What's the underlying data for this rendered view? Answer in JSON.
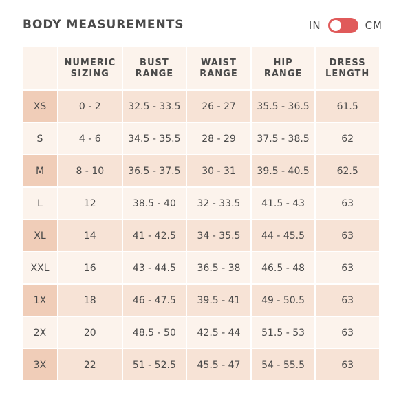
{
  "header": {
    "title": "BODY MEASUREMENTS",
    "unit_in": "IN",
    "unit_cm": "CM"
  },
  "table": {
    "columns": [
      "",
      "NUMERIC SIZING",
      "BUST RANGE",
      "WAIST RANGE",
      "HIP RANGE",
      "DRESS LENGTH"
    ],
    "rows": [
      [
        "XS",
        "0 - 2",
        "32.5 - 33.5",
        "26 - 27",
        "35.5 - 36.5",
        "61.5"
      ],
      [
        "S",
        "4 - 6",
        "34.5 - 35.5",
        "28 - 29",
        "37.5 - 38.5",
        "62"
      ],
      [
        "M",
        "8 - 10",
        "36.5 - 37.5",
        "30 - 31",
        "39.5 - 40.5",
        "62.5"
      ],
      [
        "L",
        "12",
        "38.5 - 40",
        "32 - 33.5",
        "41.5 - 43",
        "63"
      ],
      [
        "XL",
        "14",
        "41 - 42.5",
        "34 - 35.5",
        "44 - 45.5",
        "63"
      ],
      [
        "XXL",
        "16",
        "43 - 44.5",
        "36.5 - 38",
        "46.5 - 48",
        "63"
      ],
      [
        "1X",
        "18",
        "46 - 47.5",
        "39.5 - 41",
        "49 - 50.5",
        "63"
      ],
      [
        "2X",
        "20",
        "48.5 - 50",
        "42.5 - 44",
        "51.5 - 53",
        "63"
      ],
      [
        "3X",
        "22",
        "51 - 52.5",
        "45.5 - 47",
        "54 - 55.5",
        "63"
      ]
    ]
  },
  "colors": {
    "toggle": "#e05a5a",
    "row_tint": "#f7e3d6",
    "row_light": "#fcf3ec",
    "size_col_tint": "#f0cdb8"
  }
}
